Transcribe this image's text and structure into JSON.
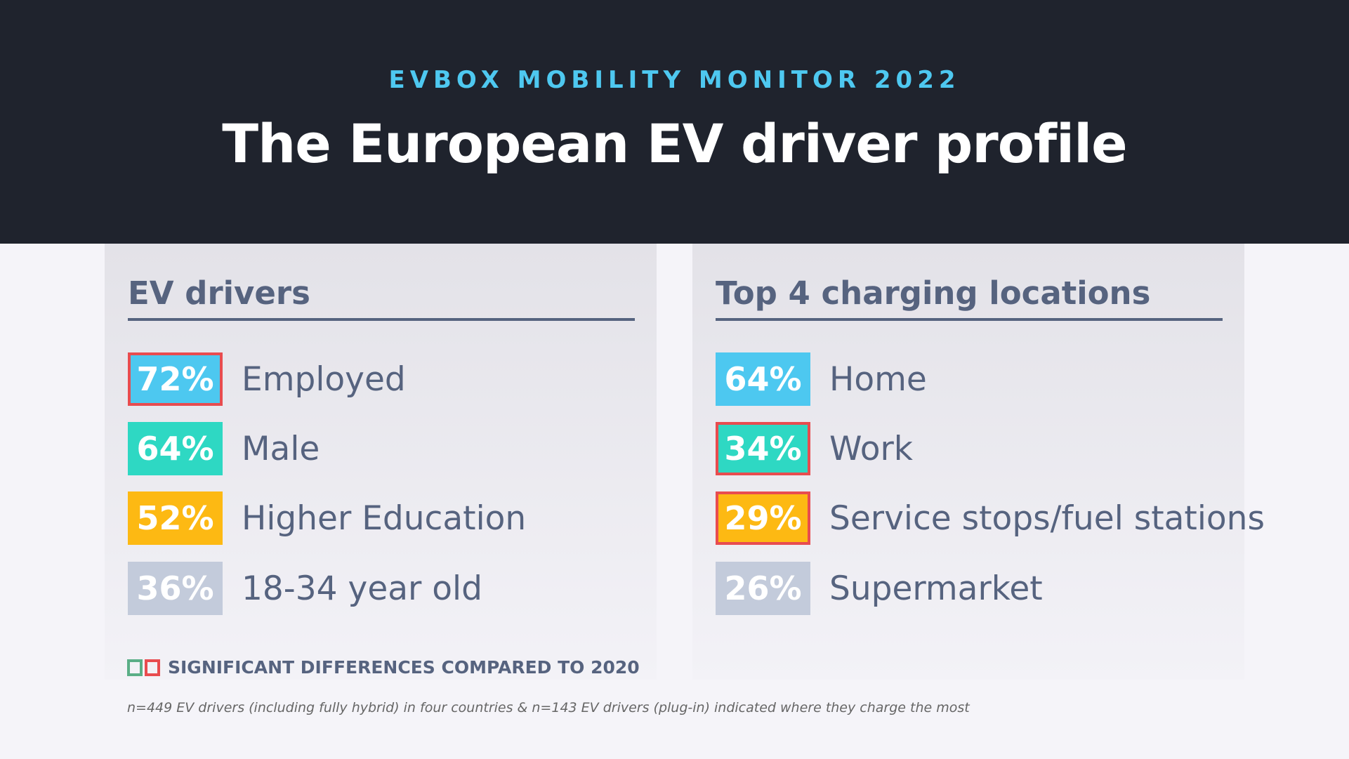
{
  "header": {
    "kicker": "EVBOX MOBILITY MONITOR 2022",
    "title": "The European EV driver profile"
  },
  "colors": {
    "blue": "#4dc8f0",
    "teal": "#2ed8c3",
    "yellow": "#fdb913",
    "grey": "#c3cbdb",
    "highlight_red": "#e84c4f",
    "highlight_green": "#5aae86"
  },
  "left": {
    "title": "EV drivers",
    "rows": [
      {
        "value": "72%",
        "label": "Employed",
        "color": "#4dc8f0",
        "significant": "red"
      },
      {
        "value": "64%",
        "label": "Male",
        "color": "#2ed8c3",
        "significant": null
      },
      {
        "value": "52%",
        "label": "Higher Education",
        "color": "#fdb913",
        "significant": null
      },
      {
        "value": "36%",
        "label": "18-34 year old",
        "color": "#c3cbdb",
        "significant": null
      }
    ]
  },
  "right": {
    "title": "Top 4 charging locations",
    "rows": [
      {
        "value": "64%",
        "label": "Home",
        "color": "#4dc8f0",
        "significant": null
      },
      {
        "value": "34%",
        "label": "Work",
        "color": "#2ed8c3",
        "significant": "red"
      },
      {
        "value": "29%",
        "label": "Service stops/fuel stations",
        "color": "#fdb913",
        "significant": "red"
      },
      {
        "value": "26%",
        "label": "Supermarket",
        "color": "#c3cbdb",
        "significant": null
      }
    ]
  },
  "legend": {
    "text": "SIGNIFICANT DIFFERENCES COMPARED TO 2020"
  },
  "footnote": "n=449 EV drivers (including fully hybrid) in four countries & n=143 EV drivers (plug-in) indicated where they charge the most"
}
